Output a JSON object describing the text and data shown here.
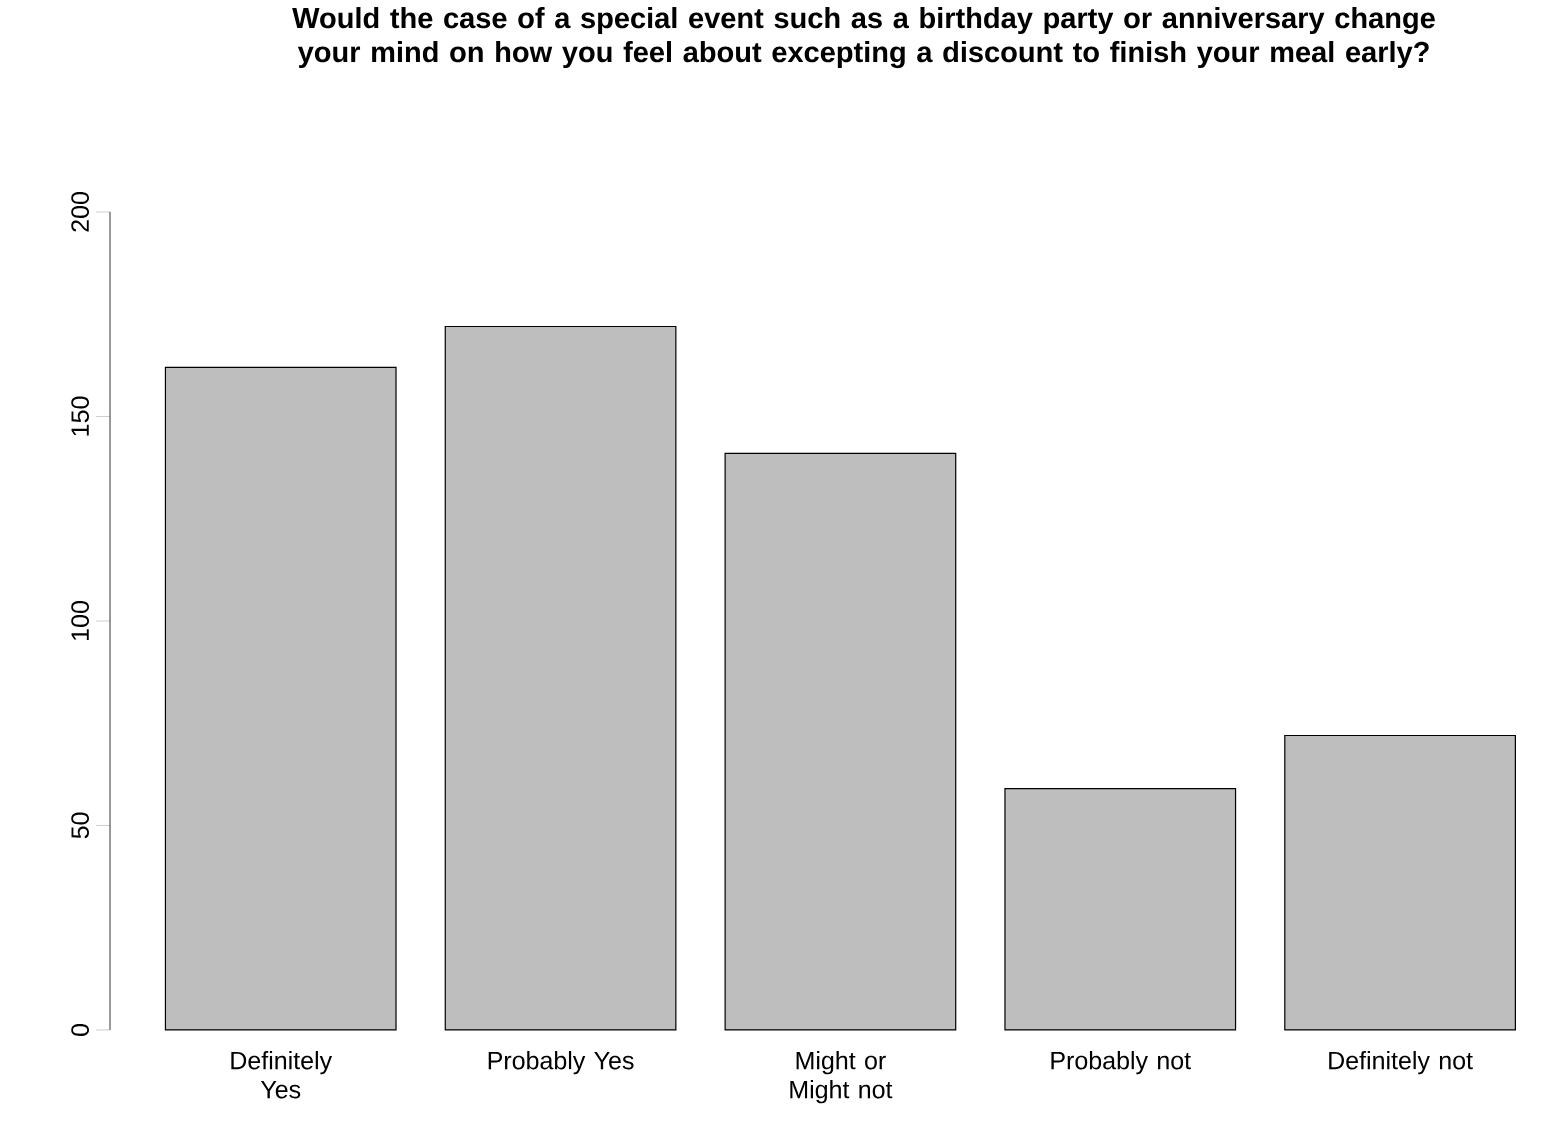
{
  "chart_data": {
    "type": "bar",
    "title": "Would the case of a special event such as a birthday party or anniversary change your mind on how you feel about excepting a discount to finish your meal early?",
    "categories": [
      "Definitely Yes",
      "Probably Yes",
      "Might or Might not",
      "Probably not",
      "Definitely not"
    ],
    "values": [
      162,
      172,
      141,
      59,
      72
    ],
    "color": "#bebebe",
    "ylim": [
      0,
      200
    ],
    "yticks": [
      0,
      50,
      100,
      150,
      200
    ],
    "grid": false
  }
}
